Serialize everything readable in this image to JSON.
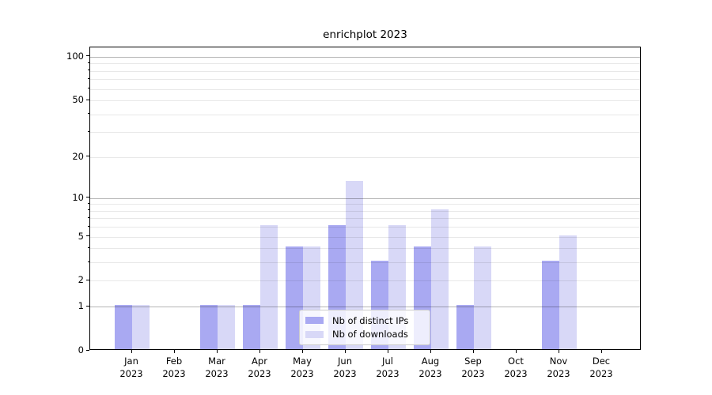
{
  "chart_data": {
    "type": "bar",
    "title": "enrichplot 2023",
    "categories": [
      "Jan",
      "Feb",
      "Mar",
      "Apr",
      "May",
      "Jun",
      "Jul",
      "Aug",
      "Sep",
      "Oct",
      "Nov",
      "Dec"
    ],
    "year_label": "2023",
    "series": [
      {
        "name": "Nb of distinct IPs",
        "color": "#a9a9f2",
        "values": [
          1,
          0,
          1,
          1,
          4,
          6,
          3,
          4,
          1,
          0,
          3,
          0
        ]
      },
      {
        "name": "Nb of downloads",
        "color": "#d8d8f7",
        "values": [
          1,
          0,
          1,
          6,
          4,
          13,
          6,
          8,
          4,
          0,
          5,
          0
        ]
      }
    ],
    "y_axis": {
      "scale": "log1p",
      "ylim": [
        0,
        116
      ],
      "tick_values": [
        0,
        1,
        2,
        5,
        10,
        20,
        50,
        100
      ],
      "tick_labels": [
        "0",
        "1",
        "2",
        "5",
        "10",
        "20",
        "50",
        "100"
      ],
      "major_gridlines": [
        1,
        10,
        100
      ],
      "minor_gridlines": [
        2,
        3,
        4,
        5,
        6,
        7,
        8,
        9,
        20,
        30,
        40,
        50,
        60,
        70,
        80,
        90
      ]
    },
    "x_axis": {
      "label_line2": "2023"
    },
    "legend_position": "lower center",
    "grid": true
  },
  "colors": {
    "bar_ips": "#a9a9f2",
    "bar_downloads": "#d8d8f7",
    "spine": "#000000",
    "background": "#ffffff"
  }
}
